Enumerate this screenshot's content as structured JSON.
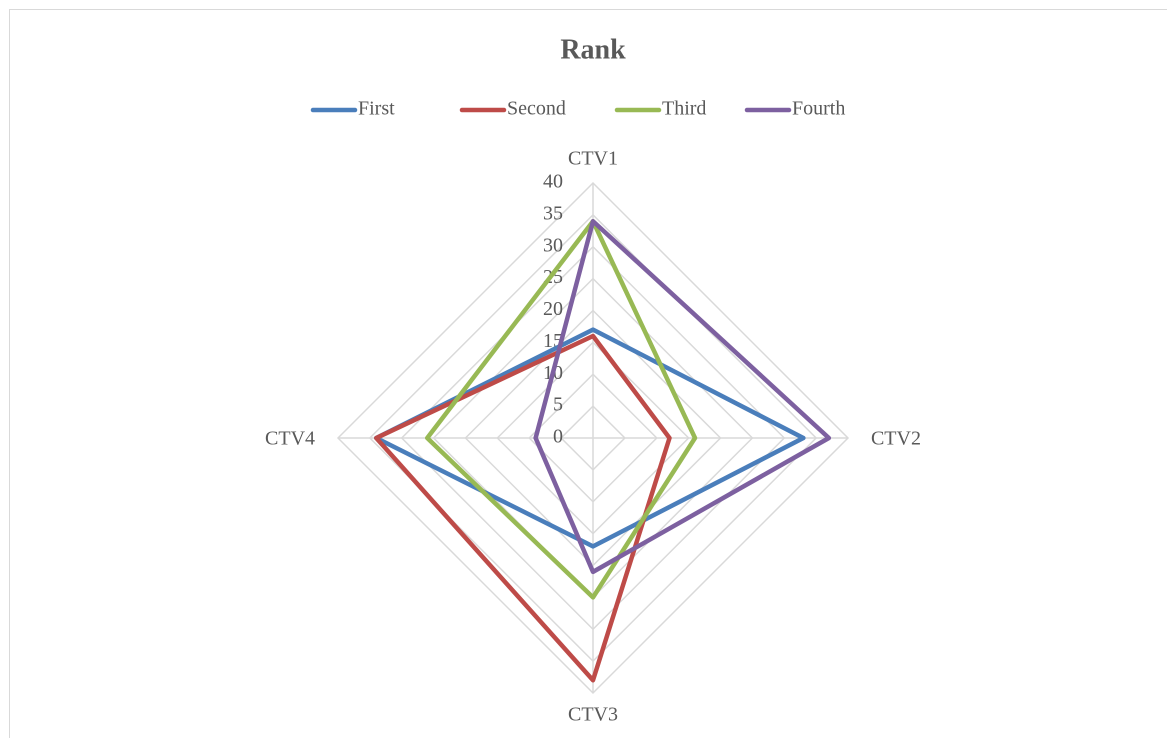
{
  "chart_data": {
    "type": "radar",
    "title": "Rank",
    "categories": [
      "CTV1",
      "CTV2",
      "CTV3",
      "CTV4"
    ],
    "series": [
      {
        "name": "First",
        "color": "#4a7ebb",
        "values": [
          17,
          33,
          17,
          34
        ]
      },
      {
        "name": "Second",
        "color": "#be4b48",
        "values": [
          16,
          12,
          38,
          34
        ]
      },
      {
        "name": "Third",
        "color": "#98b954",
        "values": [
          34,
          16,
          25,
          26
        ]
      },
      {
        "name": "Fourth",
        "color": "#7d60a0",
        "values": [
          34,
          37,
          21,
          9
        ]
      }
    ],
    "ylim": [
      0,
      40
    ],
    "yticks": [
      0,
      5,
      10,
      15,
      20,
      25,
      30,
      35,
      40
    ],
    "grid": true,
    "legend": "top"
  }
}
